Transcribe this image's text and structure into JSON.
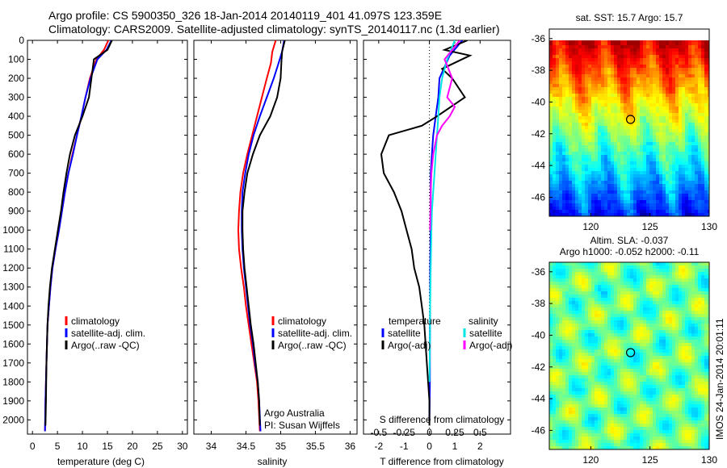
{
  "header": {
    "title_line1": "Argo profile: CS 5900350_326 18-Jan-2014 20140119_401 41.097S 123.359E",
    "title_line2": "Climatology: CARS2009. Satellite-adjusted climatology: synTS_20140117.nc (1.3d earlier)"
  },
  "colors": {
    "climatology": "#ff0000",
    "satellite": "#0000ff",
    "argo": "#000000",
    "satellite_salinity": "#00e5e5",
    "argo_salinity_adj": "#ff00ff"
  },
  "footer": {
    "sidebar_text": "IMOS 24-Jan-2014 20:01:11",
    "credit_line1": "Argo Australia",
    "credit_line2": "PI: Susan Wijffels"
  },
  "chart_data": [
    {
      "type": "line",
      "id": "temperature",
      "xlabel": "temperature (deg C)",
      "ylabel": "",
      "xlim": [
        -1,
        31
      ],
      "ylim": [
        2075,
        0
      ],
      "y_inverted": true,
      "xticks": [
        0,
        5,
        10,
        15,
        20,
        25,
        30
      ],
      "yticks": [
        0,
        100,
        200,
        300,
        400,
        500,
        600,
        700,
        800,
        900,
        1000,
        1100,
        1200,
        1300,
        1400,
        1500,
        1600,
        1700,
        1800,
        1900,
        2000
      ],
      "legend": {
        "placement": "lower-center",
        "entries": [
          "climatology",
          "satellite-adj. clim.",
          "Argo(..raw -QC)"
        ]
      },
      "series": [
        {
          "name": "climatology",
          "color": "#ff0000",
          "x": [
            15.2,
            14.3,
            12.8,
            11.5,
            10.6,
            9.8,
            8.9,
            8.0,
            7.2,
            6.5,
            5.9,
            5.3,
            4.6,
            4.0,
            3.6,
            3.3,
            3.0,
            2.8,
            2.6,
            2.5
          ],
          "y": [
            0,
            50,
            100,
            200,
            300,
            400,
            500,
            600,
            700,
            800,
            900,
            1000,
            1100,
            1200,
            1300,
            1400,
            1500,
            1700,
            1900,
            2060
          ]
        },
        {
          "name": "satellite-adj. clim.",
          "color": "#0000ff",
          "x": [
            15.8,
            14.8,
            13.0,
            11.6,
            10.6,
            9.8,
            8.9,
            8.1,
            7.2,
            6.5,
            5.9,
            5.3,
            4.6,
            4.0,
            3.6,
            3.3,
            3.0,
            2.8,
            2.6,
            2.5
          ],
          "y": [
            0,
            50,
            100,
            200,
            300,
            400,
            500,
            600,
            700,
            800,
            900,
            1000,
            1100,
            1200,
            1300,
            1400,
            1500,
            1700,
            1900,
            2060
          ]
        },
        {
          "name": "Argo(..raw -QC)",
          "color": "#000000",
          "x": [
            15.9,
            15.0,
            12.3,
            11.8,
            11.3,
            10.0,
            8.5,
            7.5,
            6.8,
            6.2,
            5.7,
            5.1,
            4.5,
            3.9,
            3.5,
            3.2,
            3.0,
            2.8,
            2.7,
            2.6
          ],
          "y": [
            0,
            50,
            100,
            200,
            300,
            400,
            500,
            600,
            700,
            800,
            900,
            1000,
            1100,
            1200,
            1300,
            1400,
            1500,
            1700,
            1900,
            2030
          ]
        }
      ]
    },
    {
      "type": "line",
      "id": "salinity",
      "xlabel": "salinity",
      "ylabel": "",
      "xlim": [
        33.75,
        36.1
      ],
      "ylim": [
        2075,
        0
      ],
      "y_inverted": true,
      "xticks": [
        34,
        34.5,
        35,
        35.5,
        36
      ],
      "legend": {
        "placement": "lower-center",
        "entries": [
          "climatology",
          "satellite-adj. clim.",
          "Argo(..raw -QC)"
        ]
      },
      "series": [
        {
          "name": "climatology",
          "color": "#ff0000",
          "x": [
            34.93,
            34.88,
            34.86,
            34.8,
            34.73,
            34.66,
            34.59,
            34.52,
            34.46,
            34.42,
            34.4,
            34.39,
            34.4,
            34.43,
            34.47,
            34.5,
            34.54,
            34.58,
            34.62,
            34.66,
            34.68,
            34.7
          ],
          "y": [
            0,
            60,
            120,
            200,
            300,
            400,
            500,
            600,
            700,
            800,
            900,
            1000,
            1100,
            1200,
            1300,
            1400,
            1500,
            1600,
            1700,
            1800,
            1900,
            2060
          ]
        },
        {
          "name": "satellite-adj. clim.",
          "color": "#0000ff",
          "x": [
            35.05,
            35.02,
            34.97,
            34.9,
            34.8,
            34.7,
            34.61,
            34.54,
            34.49,
            34.45,
            34.44,
            34.44,
            34.45,
            34.47,
            34.5,
            34.53,
            34.56,
            34.6,
            34.63,
            34.67,
            34.69,
            34.71
          ],
          "y": [
            0,
            60,
            120,
            200,
            300,
            400,
            500,
            600,
            700,
            800,
            900,
            1000,
            1100,
            1200,
            1300,
            1400,
            1500,
            1600,
            1700,
            1800,
            1900,
            2060
          ]
        },
        {
          "name": "Argo(..raw -QC)",
          "color": "#000000",
          "x": [
            35.06,
            35.02,
            35.01,
            35.0,
            34.95,
            34.85,
            34.7,
            34.6,
            34.52,
            34.48,
            34.45,
            34.45,
            34.46,
            34.48,
            34.51,
            34.54,
            34.57,
            34.61,
            34.64,
            34.67,
            34.69,
            34.7
          ],
          "y": [
            0,
            60,
            120,
            200,
            300,
            400,
            500,
            600,
            700,
            800,
            900,
            1000,
            1100,
            1200,
            1300,
            1400,
            1500,
            1600,
            1700,
            1800,
            1900,
            2030
          ]
        }
      ]
    },
    {
      "type": "line",
      "id": "difference",
      "xlabel": "T difference from climatology",
      "xlabel_top": "S difference from climatology",
      "xlim": [
        -2.6,
        3.2
      ],
      "ylim": [
        2075,
        0
      ],
      "y_inverted": true,
      "xticks": [
        -2,
        -1,
        0,
        1,
        2
      ],
      "xticks_s": [
        -0.5,
        -0.25,
        0,
        0.25,
        0.5
      ],
      "zero_line": 0,
      "legend": {
        "placement": "lower-center",
        "temperature_heading": "temperature",
        "salinity_heading": "salinity",
        "entries": [
          "satellite",
          "Argo(-adj)",
          "satellite",
          "Argo(-adj)"
        ]
      },
      "series": [
        {
          "name": "satellite",
          "group": "temperature",
          "color": "#0000ff",
          "x": [
            1.3,
            0.8,
            0.4,
            0.35,
            0.25,
            0.15,
            0.1,
            0.05,
            0.05,
            0.05,
            0.05,
            0.03,
            0.03,
            0.02,
            0.02,
            0.0
          ],
          "y": [
            0,
            80,
            200,
            300,
            400,
            500,
            600,
            700,
            800,
            900,
            1000,
            1200,
            1400,
            1600,
            1800,
            2000
          ]
        },
        {
          "name": "Argo(-adj)",
          "group": "temperature",
          "color": "#000000",
          "x": [
            1.5,
            0.6,
            1.6,
            0.5,
            0.9,
            1.4,
            0.3,
            -0.3,
            -1.6,
            -1.9,
            -1.8,
            -1.4,
            -1.1,
            -0.9,
            -0.7,
            -0.6,
            -0.4,
            -0.3,
            -0.2,
            -0.1,
            0.0,
            0.0
          ],
          "y": [
            0,
            50,
            80,
            150,
            200,
            300,
            400,
            450,
            500,
            600,
            700,
            800,
            900,
            1000,
            1100,
            1200,
            1300,
            1400,
            1500,
            1700,
            1900,
            2030
          ]
        },
        {
          "name": "satellite",
          "group": "salinity",
          "color": "#00e5e5",
          "x": [
            1.0,
            0.7,
            0.5,
            0.4,
            0.35,
            0.3,
            0.25,
            0.2,
            0.15,
            0.1,
            0.08,
            0.05,
            0.03,
            0.02,
            0.0
          ],
          "y": [
            0,
            100,
            200,
            300,
            400,
            500,
            600,
            700,
            800,
            900,
            1000,
            1200,
            1400,
            1600,
            1800
          ]
        },
        {
          "name": "Argo(-adj)",
          "group": "salinity",
          "color": "#ff00ff",
          "x": [
            1.2,
            0.6,
            0.9,
            0.7,
            1.0,
            0.8,
            0.5,
            0.3,
            0.15,
            0.08,
            0.05,
            0.03
          ],
          "y": [
            0,
            100,
            200,
            300,
            350,
            400,
            450,
            500,
            600,
            700,
            800,
            1000
          ]
        }
      ]
    },
    {
      "type": "heatmap",
      "id": "sst_map",
      "title": "sat. SST: 15.7 Argo: 15.7",
      "xlim": [
        116.5,
        130
      ],
      "ylim": [
        -47.2,
        -35.4
      ],
      "xticks": [
        120,
        125,
        130
      ],
      "yticks": [
        -36,
        -38,
        -40,
        -42,
        -44,
        -46
      ],
      "marker": {
        "lon": 123.359,
        "lat": -41.097
      },
      "colormap": "jet",
      "value_range": [
        12,
        22
      ]
    },
    {
      "type": "heatmap",
      "id": "sla_map",
      "title_line1": "Altim. SLA: -0.037",
      "title_line2": "Argo h1000: -0.052 h2000: -0.11",
      "xlim": [
        116.5,
        130
      ],
      "ylim": [
        -47.2,
        -35.4
      ],
      "xticks": [
        120,
        125,
        130
      ],
      "yticks": [
        -36,
        -38,
        -40,
        -42,
        -44,
        -46
      ],
      "marker": {
        "lon": 123.359,
        "lat": -41.097
      },
      "colormap": "jet"
    }
  ]
}
